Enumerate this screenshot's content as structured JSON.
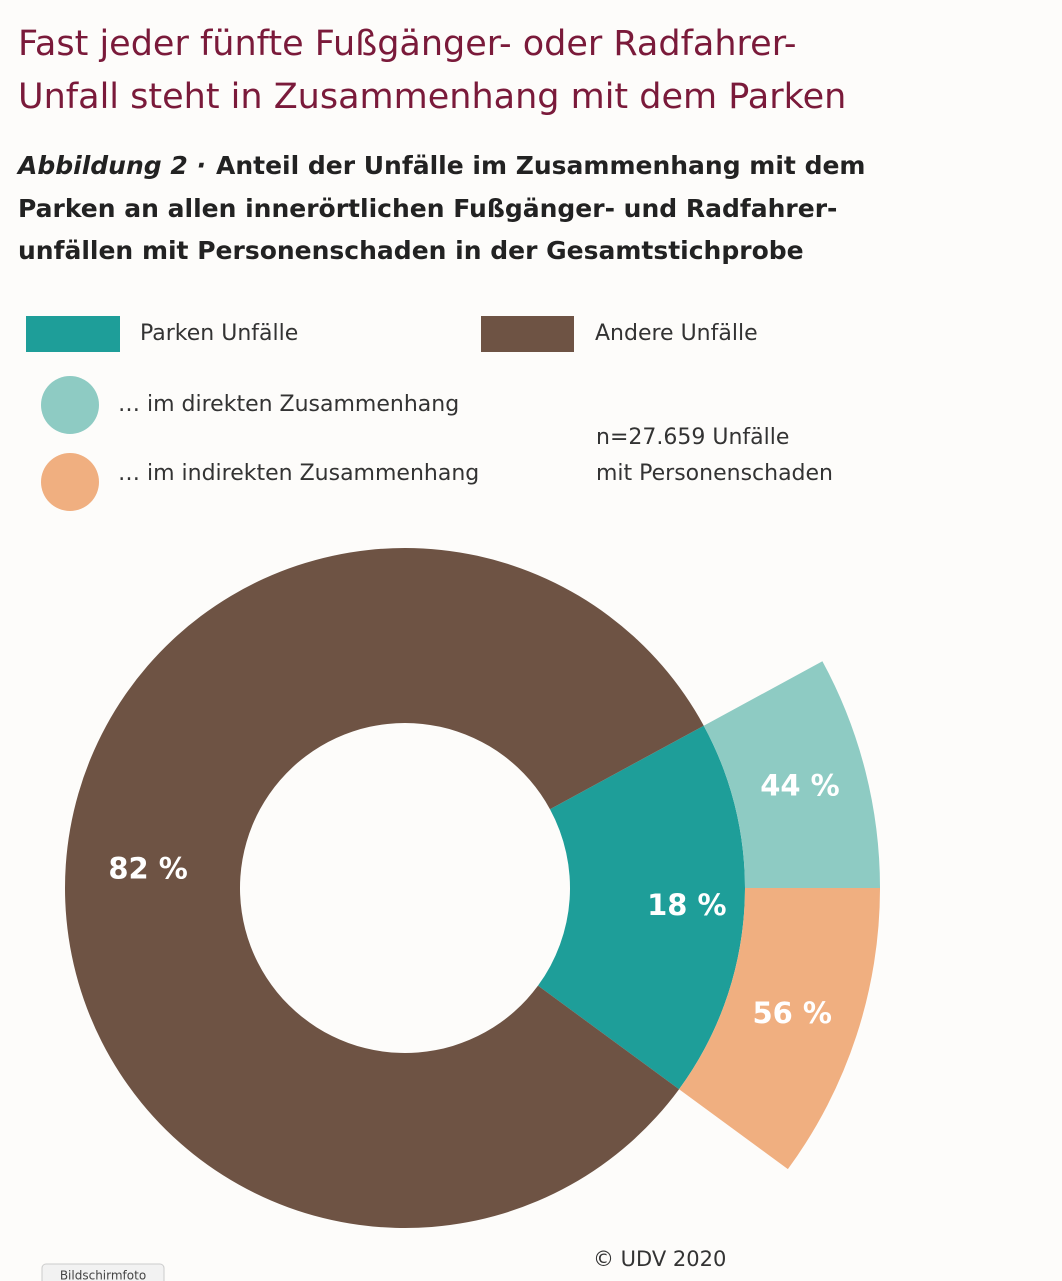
{
  "chart_data": {
    "type": "donut",
    "title": [
      "Fast jeder fünfte Fußgänger- oder Radfahrer-",
      "Unfall steht in Zusammenhang mit dem Parken"
    ],
    "figure_label": "Abbildung 2 ·",
    "subtitle": [
      "Anteil der Unfälle im Zusammenhang mit dem",
      "Parken an allen innerörtlichen Fußgänger- und Radfahrer-",
      "unfällen mit Personenschaden in der Gesamtstichprobe"
    ],
    "categories": [
      "Parken Unfälle",
      "Andere Unfälle"
    ],
    "values": [
      18,
      82
    ],
    "value_labels": [
      "18 %",
      "82 %"
    ],
    "colors": [
      "#1e9e99",
      "#6e5344"
    ],
    "sub_categories": [
      "… im direkten Zusammenhang",
      "… im indirekten Zusammenhang"
    ],
    "sub_values": [
      44,
      56
    ],
    "sub_value_labels": [
      "44 %",
      "56 %"
    ],
    "sub_colors": [
      "#8ecbc3",
      "#f0af80"
    ],
    "note": [
      "n=27.659 Unfälle",
      "mit Personenschaden"
    ],
    "source": "© UDV 2020",
    "screenshot_tag": "Bildschirmfoto"
  }
}
